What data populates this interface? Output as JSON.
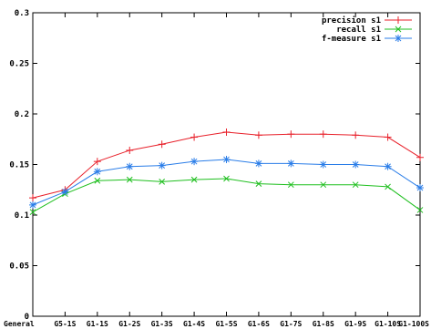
{
  "chart_data": {
    "type": "line",
    "title": "",
    "xlabel": "",
    "ylabel": "",
    "categories": [
      "General",
      "G5-1S",
      "G1-1S",
      "G1-2S",
      "G1-3S",
      "G1-4S",
      "G1-5S",
      "G1-6S",
      "G1-7S",
      "G1-8S",
      "G1-9S",
      "G1-10S",
      "G1-100S"
    ],
    "ylim": [
      0,
      0.3
    ],
    "yticks": [
      "0",
      "0.05",
      "0.1",
      "0.15",
      "0.2",
      "0.25",
      "0.3"
    ],
    "yticks_values": [
      0,
      0.05,
      0.1,
      0.15,
      0.2,
      0.25,
      0.3
    ],
    "grid": false,
    "legend_position": "top-right",
    "series": [
      {
        "name": "precision s1",
        "color": "#e8202a",
        "marker": "plus",
        "values": [
          0.117,
          0.125,
          0.153,
          0.164,
          0.17,
          0.177,
          0.182,
          0.179,
          0.18,
          0.18,
          0.179,
          0.177,
          0.157
        ]
      },
      {
        "name": "recall s1",
        "color": "#1fbf1f",
        "marker": "cross",
        "values": [
          0.103,
          0.121,
          0.134,
          0.135,
          0.133,
          0.135,
          0.136,
          0.131,
          0.13,
          0.13,
          0.13,
          0.128,
          0.105
        ]
      },
      {
        "name": "f-measure s1",
        "color": "#2a7de8",
        "marker": "star",
        "values": [
          0.11,
          0.123,
          0.143,
          0.148,
          0.149,
          0.153,
          0.155,
          0.151,
          0.151,
          0.15,
          0.15,
          0.148,
          0.127
        ]
      }
    ]
  }
}
